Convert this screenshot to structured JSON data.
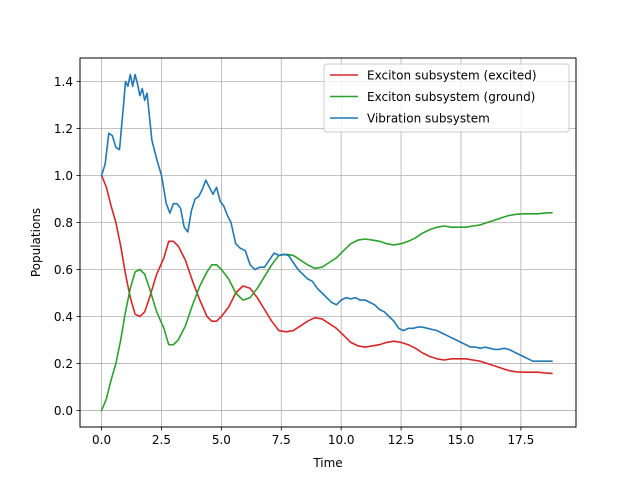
{
  "chart_data": {
    "type": "line",
    "title": "",
    "xlabel": "Time",
    "ylabel": "Populations",
    "xlim": [
      -0.9,
      19.8
    ],
    "ylim": [
      -0.07,
      1.5
    ],
    "xticks": [
      0.0,
      2.5,
      5.0,
      7.5,
      10.0,
      12.5,
      15.0,
      17.5
    ],
    "xtick_labels": [
      "0.0",
      "2.5",
      "5.0",
      "7.5",
      "10.0",
      "12.5",
      "15.0",
      "17.5"
    ],
    "yticks": [
      0.0,
      0.2,
      0.4,
      0.6,
      0.8,
      1.0,
      1.2,
      1.4
    ],
    "ytick_labels": [
      "0.0",
      "0.2",
      "0.4",
      "0.6",
      "0.8",
      "1.0",
      "1.2",
      "1.4"
    ],
    "grid": true,
    "legend_position": "upper right",
    "series": [
      {
        "name": "Exciton subsystem (excited)",
        "color": "#d62728",
        "x": [
          0,
          0.2,
          0.4,
          0.6,
          0.8,
          1.0,
          1.2,
          1.4,
          1.6,
          1.8,
          2.0,
          2.3,
          2.6,
          2.8,
          3.0,
          3.2,
          3.5,
          3.8,
          4.1,
          4.4,
          4.6,
          4.8,
          5.0,
          5.3,
          5.6,
          5.9,
          6.2,
          6.5,
          6.8,
          7.1,
          7.4,
          7.7,
          8.0,
          8.3,
          8.6,
          8.9,
          9.2,
          9.5,
          9.8,
          10.1,
          10.4,
          10.7,
          11.0,
          11.3,
          11.6,
          11.9,
          12.2,
          12.5,
          12.8,
          13.1,
          13.4,
          13.7,
          14.0,
          14.3,
          14.6,
          14.9,
          15.2,
          15.5,
          15.8,
          16.1,
          16.4,
          16.7,
          17.0,
          17.3,
          17.6,
          17.9,
          18.2,
          18.5,
          18.8
        ],
        "y": [
          1.0,
          0.95,
          0.87,
          0.8,
          0.7,
          0.58,
          0.48,
          0.41,
          0.4,
          0.42,
          0.48,
          0.58,
          0.65,
          0.72,
          0.72,
          0.7,
          0.64,
          0.55,
          0.47,
          0.4,
          0.38,
          0.38,
          0.4,
          0.44,
          0.5,
          0.53,
          0.52,
          0.48,
          0.43,
          0.38,
          0.34,
          0.335,
          0.34,
          0.36,
          0.38,
          0.395,
          0.39,
          0.37,
          0.35,
          0.32,
          0.29,
          0.275,
          0.27,
          0.275,
          0.28,
          0.29,
          0.295,
          0.29,
          0.28,
          0.265,
          0.245,
          0.23,
          0.22,
          0.215,
          0.22,
          0.22,
          0.22,
          0.215,
          0.21,
          0.2,
          0.19,
          0.18,
          0.17,
          0.165,
          0.163,
          0.163,
          0.163,
          0.16,
          0.158
        ]
      },
      {
        "name": "Exciton subsystem (ground)",
        "color": "#2ca02c",
        "x": [
          0,
          0.2,
          0.4,
          0.6,
          0.8,
          1.0,
          1.2,
          1.4,
          1.6,
          1.8,
          2.0,
          2.3,
          2.6,
          2.8,
          3.0,
          3.2,
          3.5,
          3.8,
          4.1,
          4.4,
          4.6,
          4.8,
          5.0,
          5.3,
          5.6,
          5.9,
          6.2,
          6.5,
          6.8,
          7.1,
          7.4,
          7.7,
          8.0,
          8.3,
          8.6,
          8.9,
          9.2,
          9.5,
          9.8,
          10.1,
          10.4,
          10.7,
          11.0,
          11.3,
          11.6,
          11.9,
          12.2,
          12.5,
          12.8,
          13.1,
          13.4,
          13.7,
          14.0,
          14.3,
          14.6,
          14.9,
          15.2,
          15.5,
          15.8,
          16.1,
          16.4,
          16.7,
          17.0,
          17.3,
          17.6,
          17.9,
          18.2,
          18.5,
          18.8
        ],
        "y": [
          0.0,
          0.05,
          0.13,
          0.2,
          0.3,
          0.42,
          0.52,
          0.59,
          0.6,
          0.58,
          0.52,
          0.42,
          0.35,
          0.28,
          0.28,
          0.3,
          0.36,
          0.45,
          0.53,
          0.59,
          0.62,
          0.62,
          0.6,
          0.56,
          0.5,
          0.47,
          0.48,
          0.52,
          0.57,
          0.62,
          0.66,
          0.665,
          0.66,
          0.64,
          0.62,
          0.605,
          0.61,
          0.63,
          0.65,
          0.68,
          0.71,
          0.725,
          0.73,
          0.725,
          0.72,
          0.71,
          0.705,
          0.71,
          0.72,
          0.735,
          0.755,
          0.77,
          0.78,
          0.785,
          0.78,
          0.78,
          0.78,
          0.785,
          0.79,
          0.8,
          0.81,
          0.82,
          0.83,
          0.835,
          0.837,
          0.837,
          0.837,
          0.84,
          0.842
        ]
      },
      {
        "name": "Vibration subsystem",
        "color": "#1f77b4",
        "x": [
          0,
          0.15,
          0.3,
          0.45,
          0.6,
          0.75,
          0.9,
          1.0,
          1.1,
          1.2,
          1.3,
          1.4,
          1.5,
          1.6,
          1.7,
          1.8,
          1.9,
          2.0,
          2.1,
          2.3,
          2.5,
          2.7,
          2.85,
          3.0,
          3.15,
          3.3,
          3.45,
          3.6,
          3.75,
          3.9,
          4.05,
          4.2,
          4.35,
          4.5,
          4.65,
          4.8,
          4.95,
          5.1,
          5.25,
          5.4,
          5.6,
          5.8,
          6.0,
          6.2,
          6.4,
          6.6,
          6.8,
          7.0,
          7.2,
          7.4,
          7.6,
          7.8,
          8.0,
          8.2,
          8.4,
          8.6,
          8.8,
          9.0,
          9.2,
          9.4,
          9.6,
          9.8,
          10.0,
          10.2,
          10.4,
          10.6,
          10.8,
          11.0,
          11.2,
          11.4,
          11.6,
          11.8,
          12.0,
          12.2,
          12.4,
          12.6,
          12.8,
          13.0,
          13.2,
          13.4,
          13.6,
          13.8,
          14.0,
          14.2,
          14.4,
          14.6,
          14.8,
          15.0,
          15.2,
          15.4,
          15.6,
          15.8,
          16.0,
          16.2,
          16.4,
          16.6,
          16.8,
          17.0,
          17.2,
          17.4,
          17.6,
          17.8,
          18.0,
          18.2,
          18.4,
          18.6,
          18.8
        ],
        "y": [
          1.0,
          1.05,
          1.18,
          1.17,
          1.12,
          1.11,
          1.28,
          1.4,
          1.38,
          1.43,
          1.38,
          1.43,
          1.39,
          1.34,
          1.37,
          1.32,
          1.35,
          1.25,
          1.15,
          1.07,
          1.0,
          0.88,
          0.84,
          0.88,
          0.88,
          0.86,
          0.78,
          0.76,
          0.85,
          0.9,
          0.91,
          0.94,
          0.98,
          0.95,
          0.92,
          0.95,
          0.89,
          0.87,
          0.83,
          0.8,
          0.71,
          0.69,
          0.68,
          0.62,
          0.6,
          0.61,
          0.61,
          0.64,
          0.67,
          0.66,
          0.665,
          0.66,
          0.63,
          0.6,
          0.58,
          0.56,
          0.55,
          0.52,
          0.5,
          0.48,
          0.46,
          0.45,
          0.47,
          0.48,
          0.475,
          0.48,
          0.47,
          0.47,
          0.46,
          0.45,
          0.43,
          0.42,
          0.4,
          0.38,
          0.35,
          0.34,
          0.35,
          0.35,
          0.355,
          0.355,
          0.35,
          0.345,
          0.34,
          0.33,
          0.32,
          0.31,
          0.3,
          0.29,
          0.28,
          0.27,
          0.27,
          0.265,
          0.27,
          0.265,
          0.26,
          0.26,
          0.265,
          0.26,
          0.25,
          0.24,
          0.23,
          0.22,
          0.21,
          0.21,
          0.21,
          0.21,
          0.21
        ]
      }
    ]
  }
}
